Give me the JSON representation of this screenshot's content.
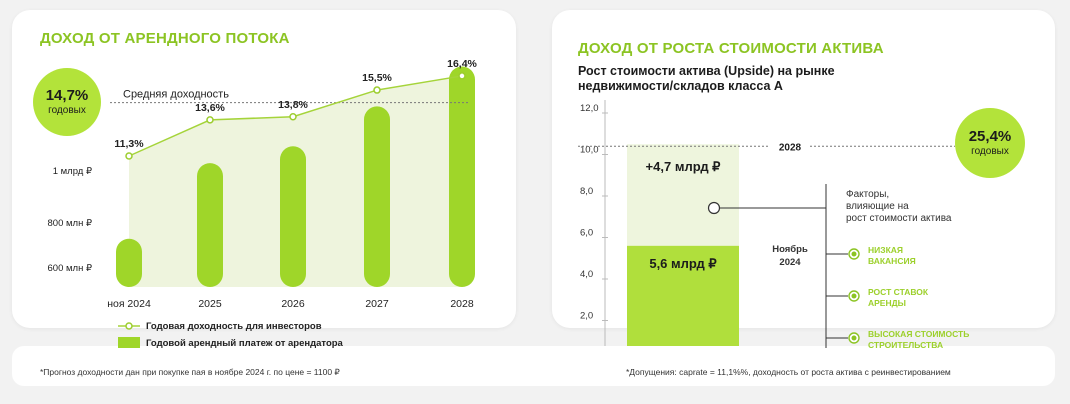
{
  "left": {
    "title": "ДОХОД ОТ АРЕНДНОГО ПОТОКА",
    "badge": {
      "value": "14,7%",
      "label": "годовых"
    },
    "avg_label": "Средняя доходность",
    "legend": {
      "line": "Годовая доходность для инвесторов",
      "bar": "Годовой арендный платеж от арендатора"
    },
    "footnote": "*Прогноз доходности дан при покупке пая в ноябре 2024 г. по цене = 1100 ₽"
  },
  "right": {
    "title": "ДОХОД ОТ РОСТА СТОИМОСТИ АКТИВА",
    "subtitle_line1": "Рост стоимости актива (Upside) на рынке",
    "subtitle_line2": "недвижимости/складов класса А",
    "badge": {
      "value": "25,4%",
      "label": "годовых"
    },
    "factors_heading": [
      "Факторы,",
      "влияющие на",
      "рост стоимости актива"
    ],
    "factors": [
      [
        "НИЗКАЯ",
        "ВАКАНСИЯ"
      ],
      [
        "РОСТ СТАВОК",
        "АРЕНДЫ"
      ],
      [
        "ВЫСОКАЯ СТОИМОСТЬ",
        "СТРОИТЕЛЬСТВА"
      ]
    ],
    "footnote": "*Допущения: caprate = 11,1%%, доходность от роста актива с реинвестированием"
  },
  "colors": {
    "accent": "#8cc423",
    "lime": "#b3e33a",
    "bar": "#9fd629",
    "area": "#eef4dd",
    "upper": "#eef5dd",
    "lower": "#b0df3c"
  },
  "chart_data": [
    {
      "type": "bar",
      "categories": [
        "ноя 2024",
        "2025",
        "2026",
        "2027",
        "2028"
      ],
      "y_tick_labels": [
        "600 млн ₽",
        "800 млн ₽",
        "1 млрд ₽"
      ],
      "series": [
        {
          "name": "Годовой арендный платеж от арендатора",
          "type": "bar",
          "values": [
            715,
            895,
            935,
            1030,
            1125
          ]
        },
        {
          "name": "Годовая доходность для инвесторов",
          "type": "line",
          "values": [
            11.3,
            13.6,
            13.8,
            15.5,
            16.4
          ],
          "labels": [
            "11,3%",
            "13,6%",
            "13,8%",
            "15,5%",
            "16,4%"
          ]
        }
      ],
      "reference_line": {
        "label": "Средняя доходность",
        "value": 14.7
      }
    },
    {
      "type": "bar",
      "yticks": [
        "2,0",
        "4,0",
        "6,0",
        "8,0",
        "10,0",
        "12,0"
      ],
      "ylim": [
        0,
        12
      ],
      "stack": [
        {
          "label": "5,6 млрд ₽",
          "value": 5.6
        },
        {
          "label": "+4,7 млрд ₽",
          "value": 4.7
        }
      ],
      "category_label_lower": [
        "Ноябрь",
        "2024"
      ],
      "category_label_upper": "2028",
      "reference_value": 10.3
    }
  ]
}
